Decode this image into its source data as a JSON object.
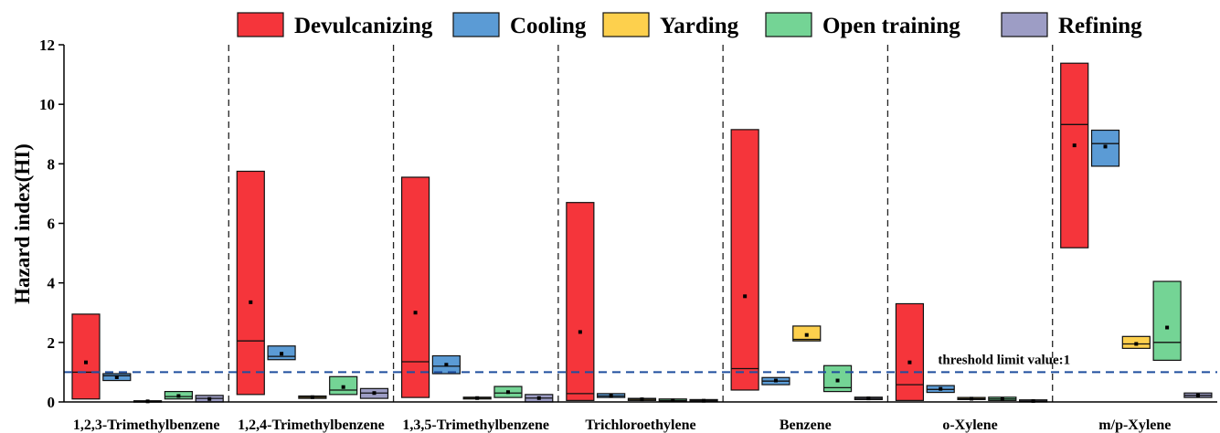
{
  "chart_data": {
    "type": "box",
    "ylabel": "Hazard index(HI)",
    "ylim": [
      0,
      12
    ],
    "yticks": [
      0,
      2,
      4,
      6,
      8,
      10,
      12
    ],
    "grid": false,
    "legend_position": "top",
    "categories": [
      "1,2,3-Trimethylbenzene",
      "1,2,4-Trimethylbenzene",
      "1,3,5-Trimethylbenzene",
      "Trichloroethylene",
      "Benzene",
      "o-Xylene",
      "m/p-Xylene"
    ],
    "series": [
      {
        "name": "Devulcanizing",
        "color": "#f5353b",
        "boxes": [
          {
            "q1": 0.1,
            "q3": 2.95,
            "median": 1.0,
            "mean": 1.33
          },
          {
            "q1": 0.25,
            "q3": 7.75,
            "median": 2.05,
            "mean": 3.35
          },
          {
            "q1": 0.15,
            "q3": 7.55,
            "median": 1.35,
            "mean": 3.0
          },
          {
            "q1": 0.05,
            "q3": 6.7,
            "median": 0.28,
            "mean": 2.35
          },
          {
            "q1": 0.4,
            "q3": 9.15,
            "median": 1.12,
            "mean": 3.55
          },
          {
            "q1": 0.05,
            "q3": 3.3,
            "median": 0.58,
            "mean": 1.33
          },
          {
            "q1": 5.18,
            "q3": 11.38,
            "median": 9.32,
            "mean": 8.62
          }
        ]
      },
      {
        "name": "Cooling",
        "color": "#5b9bd5",
        "boxes": [
          {
            "q1": 0.72,
            "q3": 0.95,
            "median": 0.88,
            "mean": 0.83
          },
          {
            "q1": 1.42,
            "q3": 1.88,
            "median": 1.53,
            "mean": 1.62
          },
          {
            "q1": 0.95,
            "q3": 1.55,
            "median": 1.2,
            "mean": 1.25
          },
          {
            "q1": 0.15,
            "q3": 0.28,
            "median": 0.2,
            "mean": 0.21
          },
          {
            "q1": 0.58,
            "q3": 0.82,
            "median": 0.7,
            "mean": 0.72
          },
          {
            "q1": 0.32,
            "q3": 0.55,
            "median": 0.42,
            "mean": 0.44
          },
          {
            "q1": 7.92,
            "q3": 9.13,
            "median": 8.68,
            "mean": 8.58
          }
        ]
      },
      {
        "name": "Yarding",
        "color": "#fdd04d",
        "boxes": [
          {
            "q1": 0.0,
            "q3": 0.04,
            "median": 0.02,
            "mean": 0.02
          },
          {
            "q1": 0.12,
            "q3": 0.2,
            "median": 0.16,
            "mean": 0.16
          },
          {
            "q1": 0.1,
            "q3": 0.16,
            "median": 0.13,
            "mean": 0.13
          },
          {
            "q1": 0.05,
            "q3": 0.12,
            "median": 0.09,
            "mean": 0.09
          },
          {
            "q1": 2.05,
            "q3": 2.55,
            "median": 2.1,
            "mean": 2.25
          },
          {
            "q1": 0.08,
            "q3": 0.15,
            "median": 0.11,
            "mean": 0.11
          },
          {
            "q1": 1.8,
            "q3": 2.2,
            "median": 1.95,
            "mean": 1.95
          }
        ]
      },
      {
        "name": "Open training",
        "color": "#74d495",
        "boxes": [
          {
            "q1": 0.1,
            "q3": 0.35,
            "median": 0.18,
            "mean": 0.2
          },
          {
            "q1": 0.25,
            "q3": 0.85,
            "median": 0.4,
            "mean": 0.5
          },
          {
            "q1": 0.15,
            "q3": 0.52,
            "median": 0.3,
            "mean": 0.33
          },
          {
            "q1": 0.02,
            "q3": 0.1,
            "median": 0.05,
            "mean": 0.05
          },
          {
            "q1": 0.35,
            "q3": 1.22,
            "median": 0.48,
            "mean": 0.72
          },
          {
            "q1": 0.05,
            "q3": 0.16,
            "median": 0.1,
            "mean": 0.1
          },
          {
            "q1": 1.4,
            "q3": 4.05,
            "median": 2.0,
            "mean": 2.5
          }
        ]
      },
      {
        "name": "Refining",
        "color": "#9d9dc5",
        "boxes": [
          {
            "q1": 0.0,
            "q3": 0.22,
            "median": 0.12,
            "mean": 0.1
          },
          {
            "q1": 0.12,
            "q3": 0.45,
            "median": 0.3,
            "mean": 0.3
          },
          {
            "q1": 0.0,
            "q3": 0.25,
            "median": 0.13,
            "mean": 0.13
          },
          {
            "q1": 0.01,
            "q3": 0.08,
            "median": 0.04,
            "mean": 0.04
          },
          {
            "q1": 0.08,
            "q3": 0.16,
            "median": 0.12,
            "mean": 0.12
          },
          {
            "q1": 0.0,
            "q3": 0.07,
            "median": 0.03,
            "mean": 0.03
          },
          {
            "q1": 0.15,
            "q3": 0.3,
            "median": 0.22,
            "mean": 0.22
          }
        ]
      }
    ],
    "reference_line": {
      "value": 1,
      "label": "threshold limit value:1",
      "color": "#1f4e9e"
    }
  }
}
